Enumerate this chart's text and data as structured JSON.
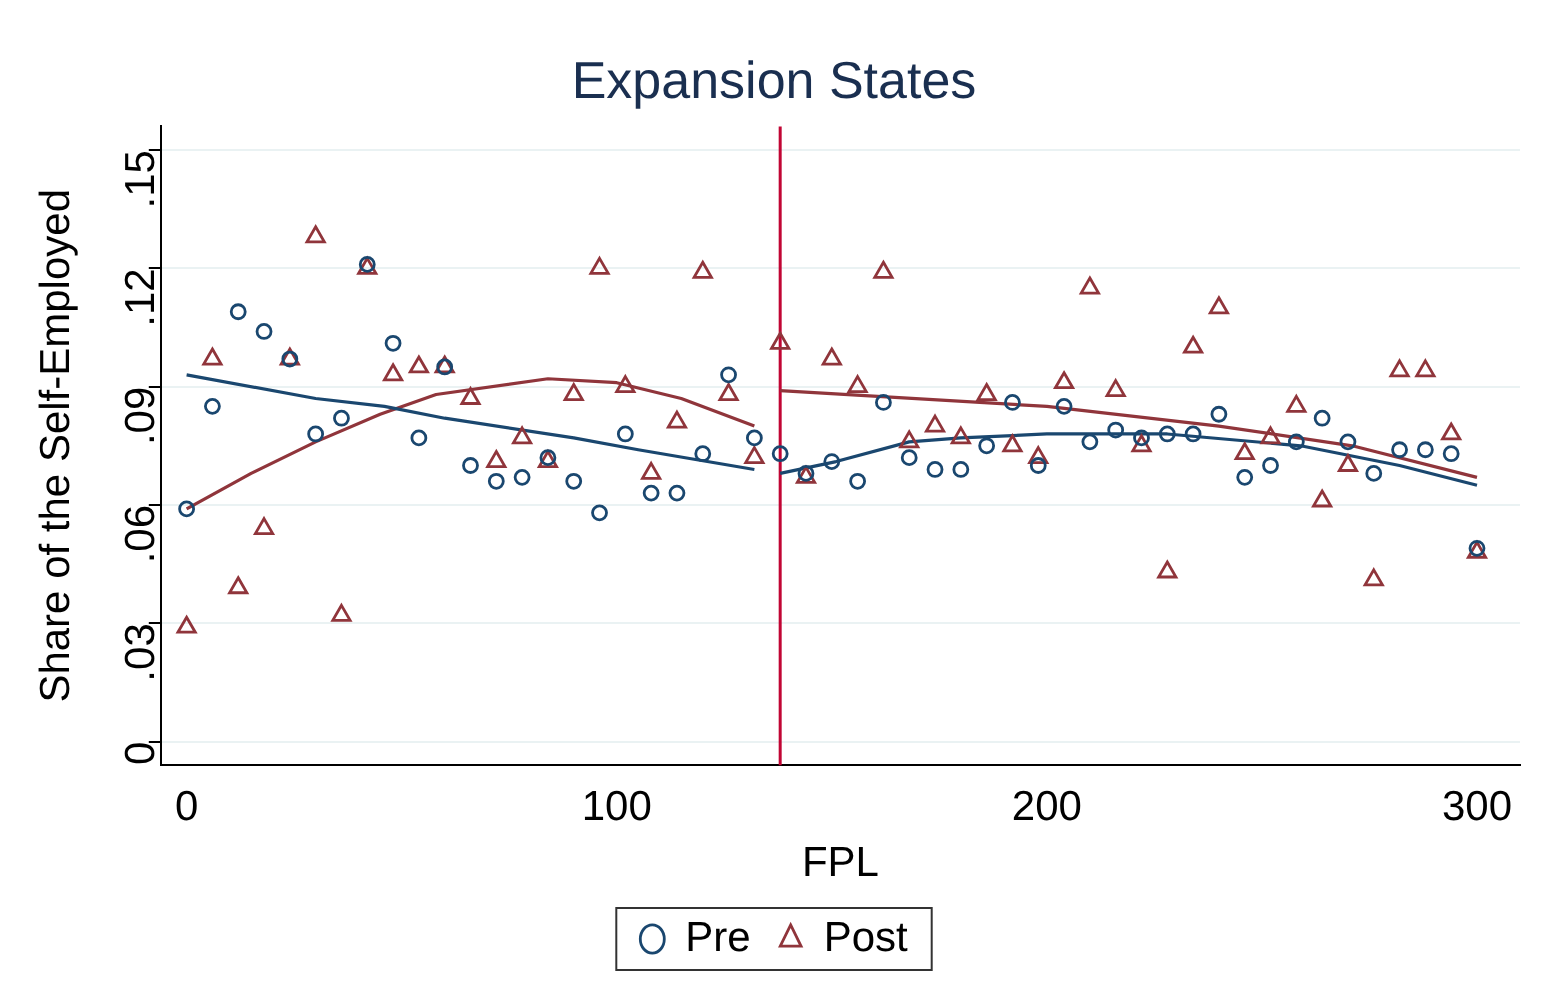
{
  "chart_data": {
    "type": "scatter",
    "title": "Expansion States",
    "xlabel": "FPL",
    "ylabel": "Share of the Self-Employed",
    "xlim": [
      -6,
      310
    ],
    "xticks": [
      0,
      100,
      200,
      300
    ],
    "ylim": [
      -0.006,
      0.156
    ],
    "yticks": [
      {
        "value": 0,
        "label": "0"
      },
      {
        "value": 0.03,
        "label": ".03"
      },
      {
        "value": 0.06,
        "label": ".06"
      },
      {
        "value": 0.09,
        "label": ".09"
      },
      {
        "value": 0.12,
        "label": ".12"
      },
      {
        "value": 0.15,
        "label": ".15"
      }
    ],
    "grid": "y",
    "legend": "bottom",
    "ref_lines": [
      {
        "axis": "x",
        "value": 138,
        "color": "#c10534"
      }
    ],
    "series": [
      {
        "name": "Pre",
        "type": "scatter",
        "marker": "circle",
        "color": "#1a476f",
        "x": [
          0,
          6,
          12,
          18,
          24,
          30,
          36,
          42,
          48,
          54,
          60,
          66,
          72,
          78,
          84,
          90,
          96,
          102,
          108,
          114,
          120,
          126,
          132,
          138,
          144,
          150,
          156,
          162,
          168,
          174,
          180,
          186,
          192,
          198,
          204,
          210,
          216,
          222,
          228,
          234,
          240,
          246,
          252,
          258,
          264,
          270,
          276,
          282,
          288,
          294,
          300
        ],
        "values": [
          0.059,
          0.085,
          0.109,
          0.104,
          0.097,
          0.078,
          0.082,
          0.121,
          0.101,
          0.077,
          0.095,
          0.07,
          0.066,
          0.067,
          0.072,
          0.066,
          0.058,
          0.078,
          0.063,
          0.063,
          0.073,
          0.093,
          0.077,
          0.073,
          0.068,
          0.071,
          0.066,
          0.086,
          0.072,
          0.069,
          0.069,
          0.075,
          0.086,
          0.07,
          0.085,
          0.076,
          0.079,
          0.077,
          0.078,
          0.078,
          0.083,
          0.067,
          0.07,
          0.076,
          0.082,
          0.076,
          0.068,
          0.074,
          0.074,
          0.073,
          0.049
        ]
      },
      {
        "name": "Post",
        "type": "scatter",
        "marker": "triangle",
        "color": "#90353b",
        "x": [
          0,
          6,
          12,
          18,
          24,
          30,
          36,
          42,
          48,
          54,
          60,
          66,
          72,
          78,
          84,
          90,
          96,
          102,
          108,
          114,
          120,
          126,
          132,
          138,
          144,
          150,
          156,
          162,
          168,
          174,
          180,
          186,
          192,
          198,
          204,
          210,
          216,
          222,
          228,
          234,
          240,
          246,
          252,
          258,
          264,
          270,
          276,
          282,
          288,
          294,
          300
        ],
        "values": [
          0.029,
          0.097,
          0.039,
          0.054,
          0.097,
          0.128,
          0.032,
          0.12,
          0.093,
          0.095,
          0.095,
          0.087,
          0.071,
          0.077,
          0.071,
          0.088,
          0.12,
          0.09,
          0.068,
          0.081,
          0.119,
          0.088,
          0.072,
          0.101,
          0.067,
          0.097,
          0.09,
          0.119,
          0.076,
          0.08,
          0.077,
          0.088,
          0.075,
          0.072,
          0.091,
          0.115,
          0.089,
          0.075,
          0.043,
          0.1,
          0.11,
          0.073,
          0.077,
          0.085,
          0.061,
          0.07,
          0.041,
          0.094,
          0.094,
          0.078,
          0.048
        ]
      },
      {
        "type": "line",
        "marker": "none",
        "color": "#1a476f",
        "x": [
          0,
          30,
          46,
          60,
          90,
          105,
          132
        ],
        "values": [
          0.093,
          0.087,
          0.085,
          0.082,
          0.077,
          0.074,
          0.069
        ]
      },
      {
        "type": "line",
        "marker": "none",
        "color": "#90353b",
        "x": [
          0,
          15,
          30,
          45,
          58,
          84,
          100,
          115,
          132
        ],
        "values": [
          0.059,
          0.068,
          0.076,
          0.083,
          0.088,
          0.092,
          0.091,
          0.087,
          0.08
        ]
      },
      {
        "type": "line",
        "marker": "none",
        "color": "#1a476f",
        "x": [
          138,
          151,
          168,
          180,
          200,
          228,
          259,
          282,
          300
        ],
        "values": [
          0.068,
          0.071,
          0.076,
          0.077,
          0.078,
          0.078,
          0.075,
          0.07,
          0.065
        ]
      },
      {
        "type": "line",
        "marker": "none",
        "color": "#90353b",
        "x": [
          138,
          200,
          240,
          271,
          300
        ],
        "values": [
          0.089,
          0.085,
          0.08,
          0.075,
          0.067
        ]
      }
    ]
  }
}
